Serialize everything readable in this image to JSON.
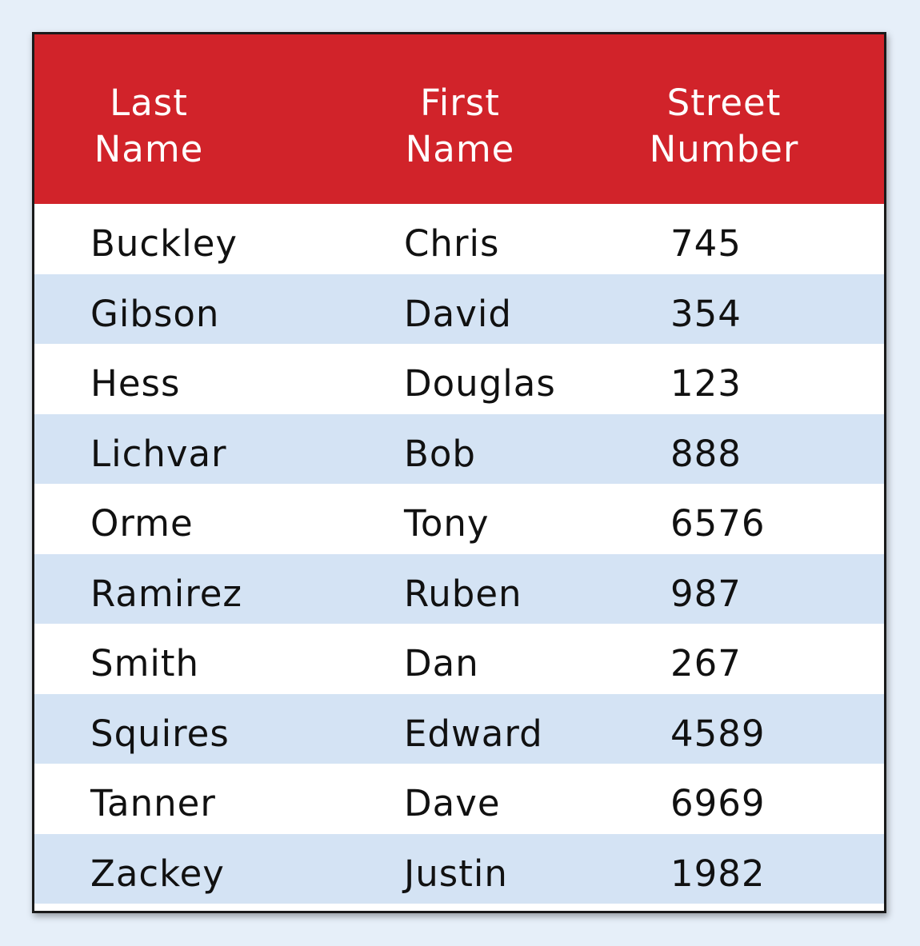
{
  "table": {
    "headers": [
      {
        "line1": "Last",
        "line2": "Name"
      },
      {
        "line1": "First",
        "line2": "Name"
      },
      {
        "line1": "Street",
        "line2": "Number"
      }
    ],
    "rows": [
      {
        "last": "Buckley",
        "first": "Chris",
        "street": "745"
      },
      {
        "last": "Gibson",
        "first": "David",
        "street": "354"
      },
      {
        "last": "Hess",
        "first": "Douglas",
        "street": "123"
      },
      {
        "last": "Lichvar",
        "first": "Bob",
        "street": "888"
      },
      {
        "last": "Orme",
        "first": "Tony",
        "street": "6576"
      },
      {
        "last": "Ramirez",
        "first": "Ruben",
        "street": "987"
      },
      {
        "last": "Smith",
        "first": "Dan",
        "street": "267"
      },
      {
        "last": "Squires",
        "first": "Edward",
        "street": "4589"
      },
      {
        "last": "Tanner",
        "first": "Dave",
        "street": "6969"
      },
      {
        "last": "Zackey",
        "first": "Justin",
        "street": "1982"
      }
    ]
  },
  "colors": {
    "header_bg": "#d1232a",
    "row_alt_bg": "#d4e3f4",
    "page_bg": "#e6eff9"
  }
}
